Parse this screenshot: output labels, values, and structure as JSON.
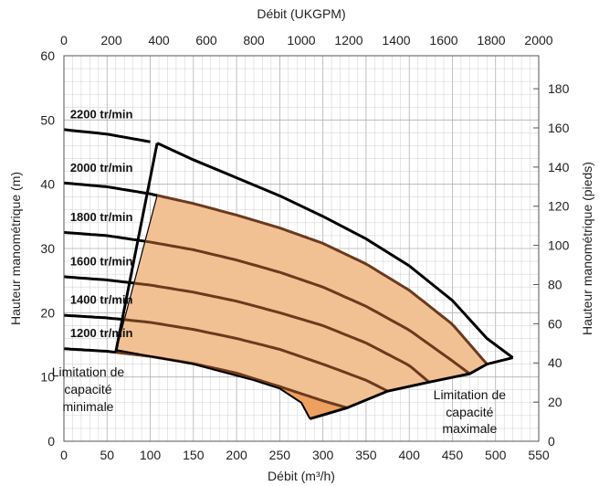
{
  "chart_data": {
    "type": "line",
    "title": "",
    "x_bottom": {
      "label": "Débit (m³/h)",
      "range": [
        0,
        550
      ],
      "ticks": [
        0,
        50,
        100,
        150,
        200,
        250,
        300,
        350,
        400,
        450,
        500,
        550
      ]
    },
    "x_top": {
      "label": "Débit (UKGPM)",
      "range": [
        0,
        2000
      ],
      "ticks": [
        0,
        200,
        400,
        600,
        800,
        1000,
        1200,
        1400,
        1600,
        1800,
        2000
      ]
    },
    "y_left": {
      "label": "Hauteur manométrique (m)",
      "range": [
        0,
        60
      ],
      "ticks": [
        0,
        10,
        20,
        30,
        40,
        50,
        60
      ]
    },
    "y_right": {
      "label": "Hauteur manométrique (pieds)",
      "range": [
        0,
        196.85
      ],
      "ticks": [
        0,
        20,
        40,
        60,
        80,
        100,
        120,
        140,
        160,
        180
      ]
    },
    "grid": true,
    "series": [
      {
        "name": "2200 tr/min",
        "points": [
          [
            0,
            48.5
          ],
          [
            50,
            47.8
          ],
          [
            100,
            46.6
          ]
        ]
      },
      {
        "name": "2000 tr/min",
        "points": [
          [
            0,
            40.2
          ],
          [
            50,
            39.6
          ],
          [
            100,
            38.5
          ],
          [
            150,
            37.0
          ],
          [
            200,
            35.2
          ],
          [
            250,
            33.2
          ],
          [
            300,
            30.8
          ],
          [
            350,
            27.6
          ],
          [
            400,
            23.5
          ],
          [
            450,
            18.2
          ],
          [
            490,
            12.0
          ]
        ]
      },
      {
        "name": "1800 tr/min",
        "points": [
          [
            0,
            32.5
          ],
          [
            50,
            32.0
          ],
          [
            100,
            31.0
          ],
          [
            150,
            29.8
          ],
          [
            200,
            28.2
          ],
          [
            250,
            26.3
          ],
          [
            300,
            24.0
          ],
          [
            350,
            21.0
          ],
          [
            400,
            17.3
          ],
          [
            450,
            12.5
          ],
          [
            470,
            10.5
          ]
        ]
      },
      {
        "name": "1600 tr/min",
        "points": [
          [
            0,
            25.6
          ],
          [
            50,
            25.1
          ],
          [
            100,
            24.3
          ],
          [
            150,
            23.2
          ],
          [
            200,
            21.8
          ],
          [
            250,
            20.0
          ],
          [
            300,
            18.0
          ],
          [
            350,
            15.3
          ],
          [
            400,
            11.8
          ],
          [
            423,
            9.2
          ]
        ]
      },
      {
        "name": "1400 tr/min",
        "points": [
          [
            0,
            19.6
          ],
          [
            50,
            19.2
          ],
          [
            100,
            18.5
          ],
          [
            150,
            17.4
          ],
          [
            200,
            16.0
          ],
          [
            250,
            14.3
          ],
          [
            300,
            12.0
          ],
          [
            350,
            9.5
          ],
          [
            375,
            7.8
          ]
        ]
      },
      {
        "name": "1200 tr/min",
        "points": [
          [
            0,
            14.4
          ],
          [
            50,
            14.0
          ],
          [
            100,
            13.2
          ],
          [
            150,
            12.1
          ],
          [
            200,
            10.6
          ],
          [
            250,
            8.5
          ],
          [
            300,
            6.3
          ],
          [
            328,
            5.2
          ]
        ]
      }
    ],
    "annotations": {
      "min_limit": [
        "Limitation de",
        "capacité",
        "minimale"
      ],
      "max_limit": [
        "Limitation de",
        "capacité",
        "maximale"
      ]
    },
    "colors": {
      "region_fill": "#f2c193",
      "region_min_fill": "#eea060",
      "curve_inside": "#6b3a1e",
      "curve_outside": "#000000",
      "grid": "#cfcfcf",
      "grid_major": "#b0b0b0"
    }
  }
}
